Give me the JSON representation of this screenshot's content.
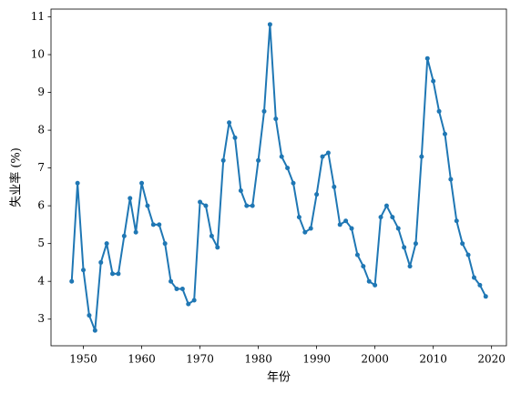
{
  "chart_data": {
    "type": "line",
    "xlabel": "年份",
    "ylabel": "失业率 (%)",
    "x": [
      1948,
      1949,
      1950,
      1951,
      1952,
      1953,
      1954,
      1955,
      1956,
      1957,
      1958,
      1959,
      1960,
      1961,
      1962,
      1963,
      1964,
      1965,
      1966,
      1967,
      1968,
      1969,
      1970,
      1971,
      1972,
      1973,
      1974,
      1975,
      1976,
      1977,
      1978,
      1979,
      1980,
      1981,
      1982,
      1983,
      1984,
      1985,
      1986,
      1987,
      1988,
      1989,
      1990,
      1991,
      1992,
      1993,
      1994,
      1995,
      1996,
      1997,
      1998,
      1999,
      2000,
      2001,
      2002,
      2003,
      2004,
      2005,
      2006,
      2007,
      2008,
      2009,
      2010,
      2011,
      2012,
      2013,
      2014,
      2015,
      2016,
      2017,
      2018,
      2019
    ],
    "series": [
      {
        "color": "#1f77b4",
        "values": [
          4.0,
          6.6,
          4.3,
          3.1,
          2.7,
          4.5,
          5.0,
          4.2,
          4.2,
          5.2,
          6.2,
          5.3,
          6.6,
          6.0,
          5.5,
          5.5,
          5.0,
          4.0,
          3.8,
          3.8,
          3.4,
          3.5,
          6.1,
          6.0,
          5.2,
          4.9,
          7.2,
          8.2,
          7.8,
          6.4,
          6.0,
          6.0,
          7.2,
          8.5,
          10.8,
          8.3,
          7.3,
          7.0,
          6.6,
          5.7,
          5.3,
          5.4,
          6.3,
          7.3,
          7.4,
          6.5,
          5.5,
          5.6,
          5.4,
          4.7,
          4.4,
          4.0,
          3.9,
          5.7,
          6.0,
          5.7,
          5.4,
          4.9,
          4.4,
          5.0,
          7.3,
          9.9,
          9.3,
          8.5,
          7.9,
          6.7,
          5.6,
          5.0,
          4.7,
          4.1,
          3.9,
          3.6
        ]
      }
    ],
    "xlim": [
      1944.45,
      2022.55
    ],
    "xticks": [
      1950,
      1960,
      1970,
      1980,
      1990,
      2000,
      2010,
      2020
    ],
    "ylim": [
      2.295,
      11.205
    ],
    "yticks": [
      3,
      4,
      5,
      6,
      7,
      8,
      9,
      10,
      11
    ]
  }
}
